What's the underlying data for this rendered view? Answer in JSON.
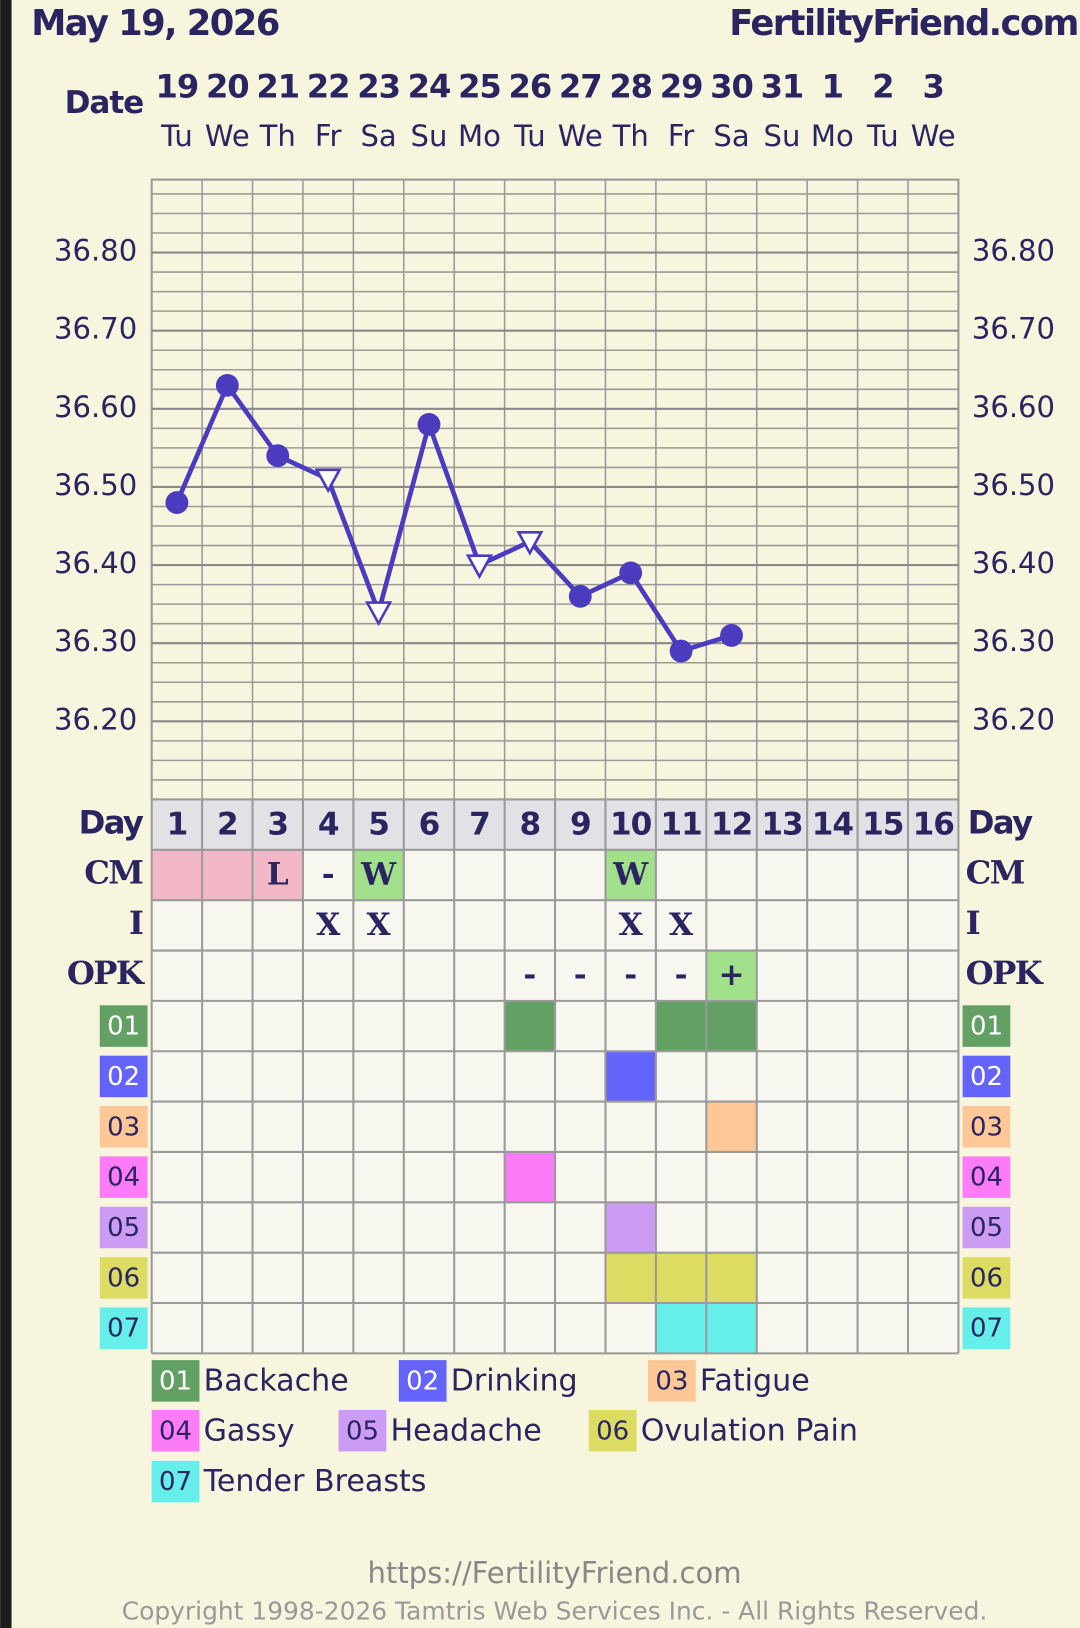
{
  "header": {
    "date": "May 19, 2026",
    "site": "FertilityFriend.com"
  },
  "chart_data": {
    "type": "line",
    "date_label": "Date",
    "categories": [
      "19",
      "20",
      "21",
      "22",
      "23",
      "24",
      "25",
      "26",
      "27",
      "28",
      "29",
      "30",
      "31",
      "1",
      "2",
      "3"
    ],
    "weekdays": [
      "Tu",
      "We",
      "Th",
      "Fr",
      "Sa",
      "Su",
      "Mo",
      "Tu",
      "We",
      "Th",
      "Fr",
      "Sa",
      "Su",
      "Mo",
      "Tu",
      "We"
    ],
    "series": [
      {
        "color": "#4a3bbf",
        "values": [
          36.48,
          36.63,
          36.54,
          36.51,
          36.34,
          36.58,
          36.4,
          36.43,
          36.36,
          36.39,
          36.29,
          36.31,
          null,
          null,
          null,
          null
        ],
        "markers": [
          "circle",
          "circle",
          "circle",
          "triangle",
          "triangle",
          "circle",
          "triangle",
          "triangle",
          "circle",
          "circle",
          "circle",
          "circle",
          null,
          null,
          null,
          null
        ]
      }
    ],
    "ylim": [
      36.1,
      36.9
    ],
    "yticks": [
      {
        "value": 36.2,
        "label": "36.20"
      },
      {
        "value": 36.3,
        "label": "36.30"
      },
      {
        "value": 36.4,
        "label": "36.40"
      },
      {
        "value": 36.5,
        "label": "36.50"
      },
      {
        "value": 36.6,
        "label": "36.60"
      },
      {
        "value": 36.7,
        "label": "36.70"
      },
      {
        "value": 36.8,
        "label": "36.80"
      }
    ],
    "grid": true
  },
  "table": {
    "day_label": "Day",
    "days": [
      "1",
      "2",
      "3",
      "4",
      "5",
      "6",
      "7",
      "8",
      "9",
      "10",
      "11",
      "12",
      "13",
      "14",
      "15",
      "16"
    ],
    "rows": [
      {
        "label": "CM",
        "cells": [
          null,
          null,
          "L",
          "-",
          "W",
          null,
          null,
          null,
          null,
          "W",
          null,
          null,
          null,
          null,
          null,
          null
        ],
        "colors": [
          "#f2b8c8",
          "#f2b8c8",
          "#f2b8c8",
          null,
          "#a3e08c",
          null,
          null,
          null,
          null,
          "#a3e08c",
          null,
          null,
          null,
          null,
          null,
          null
        ]
      },
      {
        "label": "I",
        "cells": [
          null,
          null,
          null,
          "X",
          "X",
          null,
          null,
          null,
          null,
          "X",
          "X",
          null,
          null,
          null,
          null,
          null
        ]
      },
      {
        "label": "OPK",
        "cells": [
          null,
          null,
          null,
          null,
          null,
          null,
          null,
          "-",
          "-",
          "-",
          "-",
          "+",
          null,
          null,
          null,
          null
        ],
        "colors": [
          null,
          null,
          null,
          null,
          null,
          null,
          null,
          null,
          null,
          null,
          null,
          "#a3e08c",
          null,
          null,
          null,
          null
        ]
      }
    ],
    "symptoms": [
      {
        "code": "01",
        "name": "Backache",
        "color": "#63a063",
        "days": [
          8,
          11,
          12
        ]
      },
      {
        "code": "02",
        "name": "Drinking",
        "color": "#6464fa",
        "days": [
          10
        ]
      },
      {
        "code": "03",
        "name": "Fatigue",
        "color": "#fdc896",
        "days": [
          12
        ]
      },
      {
        "code": "04",
        "name": "Gassy",
        "color": "#fb7cf6",
        "days": [
          8
        ]
      },
      {
        "code": "05",
        "name": "Headache",
        "color": "#cc9cf4",
        "days": [
          10
        ]
      },
      {
        "code": "06",
        "name": "Ovulation Pain",
        "color": "#dcdc62",
        "days": [
          10,
          11,
          12
        ]
      },
      {
        "code": "07",
        "name": "Tender Breasts",
        "color": "#66eeea",
        "days": [
          11,
          12
        ]
      }
    ]
  },
  "footer": {
    "url": "https://FertilityFriend.com",
    "copyright": "Copyright 1998-2026 Tamtris Web Services Inc. - All Rights Reserved."
  }
}
